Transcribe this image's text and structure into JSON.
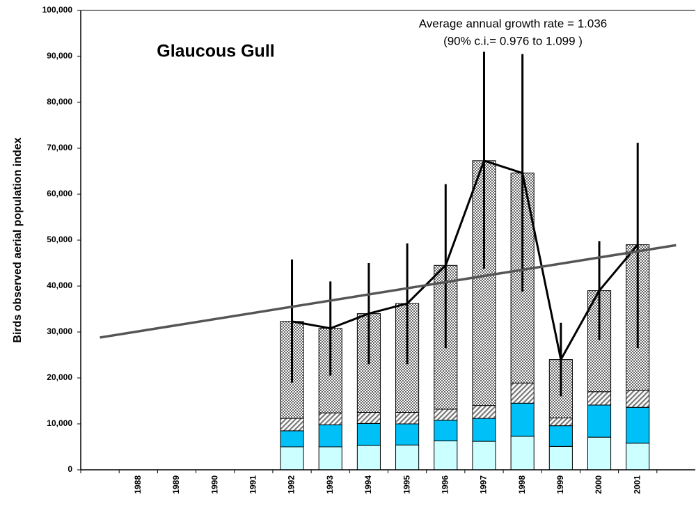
{
  "chart_data": {
    "type": "stacked-bar",
    "title": "Glaucous Gull",
    "annotations": [
      "Average annual growth rate = 1.036",
      "(90% c.i.= 0.976 to 1.099 )"
    ],
    "y_label": "Birds observed aerial population index",
    "categories": [
      null,
      "1988",
      "1989",
      "1990",
      "1991",
      "1992",
      "1993",
      "1994",
      "1995",
      "1996",
      "1997",
      "1998",
      "1999",
      "2000",
      "2001",
      null
    ],
    "series": [
      {
        "color": "#ccffff",
        "values": [
          null,
          null,
          null,
          null,
          null,
          5000,
          5000,
          5300,
          5400,
          6300,
          6200,
          7300,
          5100,
          7100,
          5800,
          null
        ]
      },
      {
        "color": "#00c0f8",
        "values": [
          null,
          null,
          null,
          null,
          null,
          3500,
          4800,
          4800,
          4600,
          4500,
          5000,
          7200,
          4500,
          7000,
          7800,
          null
        ]
      },
      {
        "color": "#999999",
        "pattern": "diagonal",
        "values": [
          null,
          null,
          null,
          null,
          null,
          2700,
          2600,
          2400,
          2500,
          2400,
          2800,
          4400,
          1700,
          2900,
          3700,
          null
        ]
      },
      {
        "color": "#888888",
        "pattern": "checker",
        "values": [
          null,
          null,
          null,
          null,
          null,
          21100,
          18400,
          21500,
          23700,
          31300,
          53300,
          45700,
          12700,
          22000,
          31700,
          null
        ]
      }
    ],
    "totals": {
      "color": "#000000",
      "values": [
        null,
        null,
        null,
        null,
        null,
        32300,
        30800,
        34000,
        36200,
        44500,
        67300,
        64600,
        24000,
        39000,
        49000,
        null
      ],
      "lower": [
        null,
        null,
        null,
        null,
        null,
        19000,
        20500,
        23000,
        23000,
        26500,
        43800,
        38800,
        16000,
        28300,
        26500,
        null
      ],
      "upper": [
        null,
        null,
        null,
        null,
        null,
        45800,
        41000,
        45000,
        49300,
        62200,
        91000,
        90500,
        32000,
        49800,
        71200,
        null
      ]
    },
    "trend": {
      "color": "#555555",
      "values": [
        28800,
        null,
        null,
        null,
        null,
        null,
        null,
        null,
        null,
        null,
        null,
        null,
        null,
        null,
        null,
        48900
      ]
    },
    "ylim": [
      0,
      100000
    ],
    "yticks": [
      0,
      {
        "value": 10000,
        "label": "10,000"
      },
      {
        "value": 20000,
        "label": "20,000"
      },
      {
        "value": 30000,
        "label": "30,000"
      },
      {
        "value": 40000,
        "label": "40,000"
      },
      {
        "value": 50000,
        "label": "50,000"
      },
      {
        "value": 60000,
        "label": "60,000"
      },
      {
        "value": 70000,
        "label": "70,000"
      },
      {
        "value": 80000,
        "label": "80,000"
      },
      {
        "value": 90000,
        "label": "90,000"
      },
      {
        "value": 100000,
        "label": "100,000"
      }
    ],
    "grid": false
  }
}
